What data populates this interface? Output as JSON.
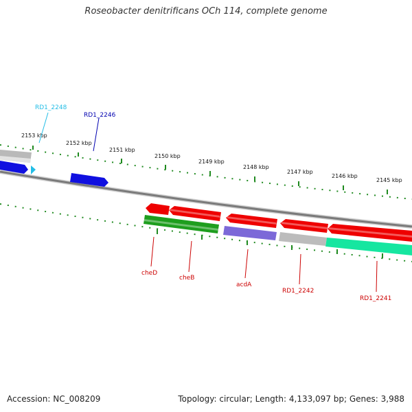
{
  "title": "Roseobacter denitrificans OCh 114, complete genome",
  "footer": {
    "accession": "Accession: NC_008209",
    "topology": "Topology: circular; Length: 4,133,097 bp; Genes: 3,988"
  },
  "colors": {
    "backbone": "#7a7a7a",
    "ticks": "#1f8a1f",
    "blue_gene": "#1010e0",
    "cyan_label": "#22bde6",
    "red_gene": "#ee0000",
    "green_gene": "#1e9e1e",
    "purple_gene": "#7c69d8",
    "gray_gene": "#b8b8b8",
    "mint_gene": "#16e6a0",
    "label_red": "#cc0000",
    "label_blue": "#0000b0"
  },
  "ruler": [
    "2153 kbp",
    "2152 kbp",
    "2151 kbp",
    "2150 kbp",
    "2149 kbp",
    "2148 kbp",
    "2147 kbp",
    "2146 kbp",
    "2145 kbp"
  ],
  "gene_labels": {
    "rd1_2248": "RD1_2248",
    "rd1_2246": "RD1_2246",
    "cheD": "cheD",
    "cheB": "cheB",
    "acdA": "acdA",
    "rd1_2242": "RD1_2242",
    "rd1_2241": "RD1_2241"
  }
}
